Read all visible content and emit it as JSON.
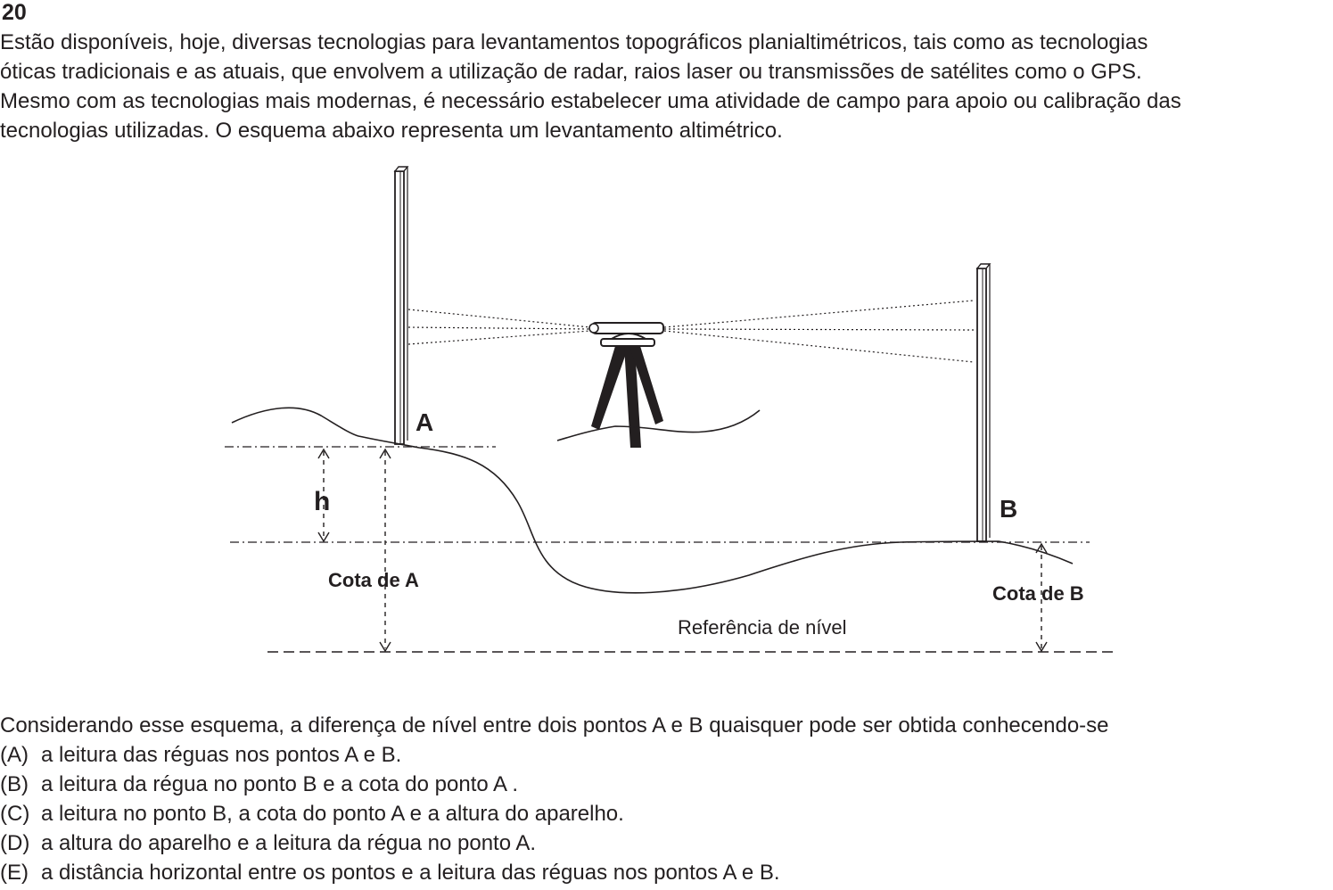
{
  "question": {
    "number": "20",
    "paragraph_lines": [
      "Estão disponíveis, hoje, diversas tecnologias para levantamentos topográficos planialtimétricos, tais como as tecnologias",
      "óticas  tradicionais  e as atuais, que envolvem a utilização de radar, raios laser ou transmissões de satélites como o GPS.",
      "Mesmo com as tecnologias mais modernas, é necessário estabelecer uma atividade de campo para apoio ou calibração das",
      "tecnologias utilizadas. O esquema abaixo representa um levantamento altimétrico."
    ],
    "stem": "Considerando esse esquema, a diferença de nível entre dois pontos A e B quaisquer pode ser obtida conhecendo-se",
    "options": [
      {
        "letter": "(A)",
        "text": "a leitura das réguas nos pontos A e B."
      },
      {
        "letter": "(B)",
        "text": "a leitura da régua no ponto B e  a cota do ponto A ."
      },
      {
        "letter": "(C)",
        "text": "a leitura no ponto B, a cota do ponto A e a altura do aparelho."
      },
      {
        "letter": "(D)",
        "text": "a altura do aparelho e a leitura da régua no ponto A."
      },
      {
        "letter": "(E)",
        "text": "a distância horizontal entre os pontos e a leitura das réguas nos pontos A e B."
      }
    ]
  },
  "diagram": {
    "label_a": "A",
    "label_b": "B",
    "label_h": "h",
    "label_cota_a": "Cota de A",
    "label_cota_b": "Cota de B",
    "label_reference": "Referência de nível"
  }
}
